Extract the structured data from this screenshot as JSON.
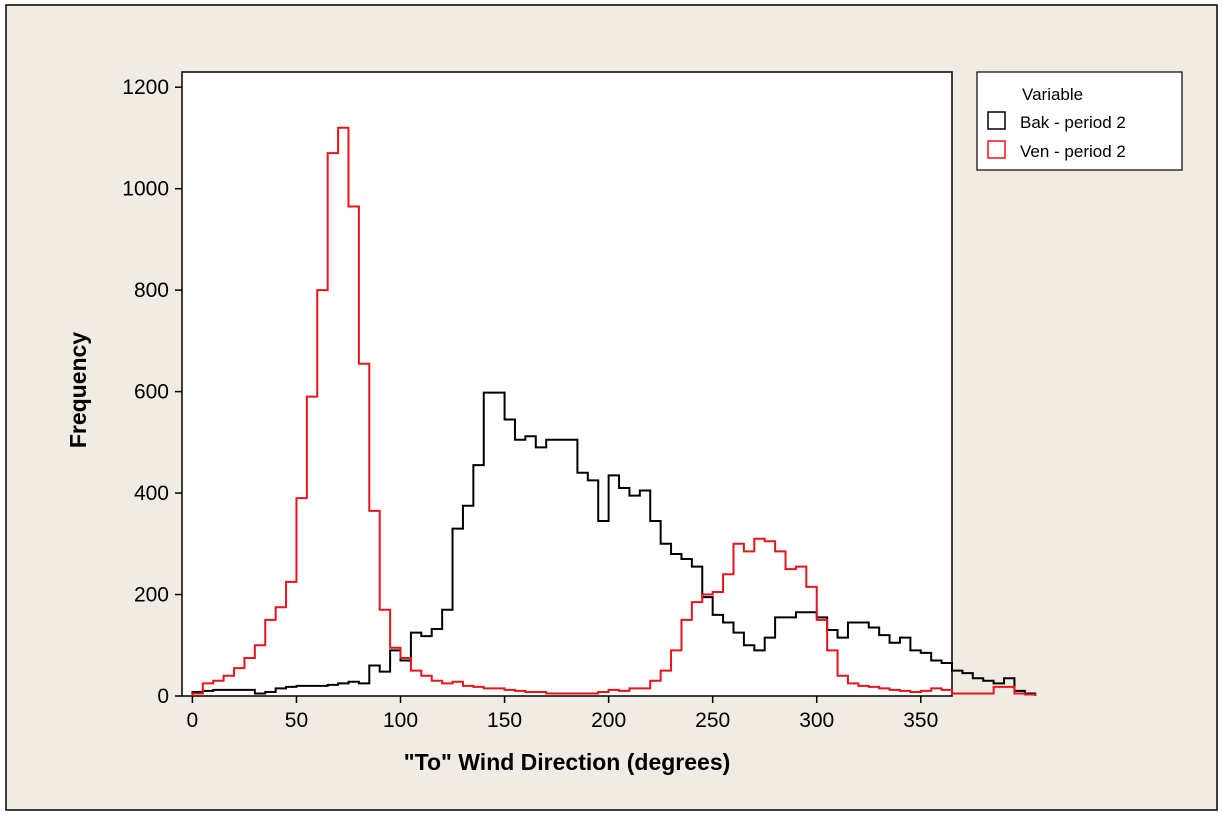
{
  "colors": {
    "frame_bg": "#f0ebe3",
    "plot_bg": "#ffffff",
    "axis": "#000000"
  },
  "chart_data": {
    "type": "histogram-step",
    "title": "",
    "xlabel": "\"To\" Wind Direction (degrees)",
    "ylabel": "Frequency",
    "xlim": [
      -5,
      365
    ],
    "ylim": [
      0,
      1230
    ],
    "bin_width": 5,
    "x_ticks": [
      0,
      50,
      100,
      150,
      200,
      250,
      300,
      350
    ],
    "x_tick_labels": [
      "0",
      "50",
      "100",
      "150",
      "200",
      "250",
      "300",
      "350"
    ],
    "y_ticks": [
      0,
      200,
      400,
      600,
      800,
      1000,
      1200
    ],
    "y_tick_labels": [
      "0",
      "200",
      "400",
      "600",
      "800",
      "1000",
      "1200"
    ],
    "grid": false,
    "legend": {
      "title": "Variable",
      "position": "right"
    },
    "series": [
      {
        "name": "Bak - period 2",
        "color": "#000000",
        "values": [
          8,
          10,
          12,
          12,
          12,
          12,
          5,
          8,
          15,
          18,
          20,
          20,
          20,
          22,
          25,
          28,
          25,
          60,
          48,
          90,
          70,
          125,
          118,
          132,
          170,
          330,
          375,
          455,
          598,
          598,
          545,
          505,
          512,
          490,
          505,
          505,
          505,
          440,
          425,
          345,
          435,
          410,
          395,
          405,
          345,
          300,
          280,
          270,
          255,
          195,
          160,
          145,
          125,
          100,
          90,
          115,
          155,
          155,
          165,
          165,
          155,
          130,
          115,
          145,
          145,
          135,
          120,
          105,
          115,
          90,
          85,
          70,
          65,
          50,
          45,
          35,
          30,
          25,
          35,
          10,
          5
        ]
      },
      {
        "name": "Ven - period 2",
        "color": "#e8141c",
        "values": [
          5,
          25,
          30,
          40,
          55,
          75,
          100,
          150,
          175,
          225,
          390,
          590,
          800,
          1070,
          1120,
          965,
          655,
          365,
          170,
          95,
          75,
          50,
          40,
          30,
          25,
          28,
          20,
          18,
          15,
          15,
          12,
          10,
          8,
          8,
          5,
          5,
          5,
          5,
          5,
          8,
          12,
          10,
          15,
          15,
          30,
          50,
          90,
          150,
          185,
          200,
          205,
          240,
          300,
          285,
          310,
          305,
          285,
          250,
          255,
          215,
          150,
          90,
          40,
          25,
          20,
          18,
          15,
          12,
          10,
          8,
          10,
          15,
          12,
          5,
          5,
          5,
          5,
          18,
          18,
          5,
          3
        ]
      }
    ]
  }
}
